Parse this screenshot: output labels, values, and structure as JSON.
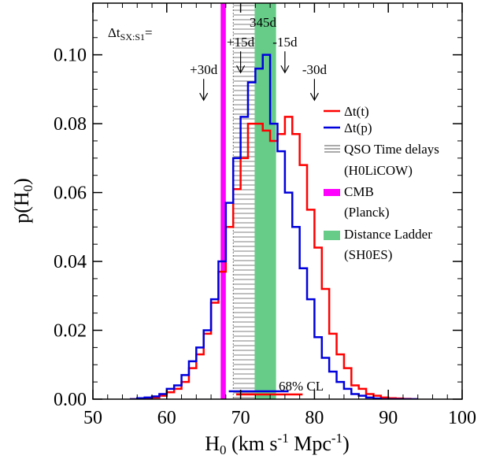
{
  "chart_data": {
    "type": "histogram",
    "xlabel": "H",
    "xlabel_sub": "0",
    "xlabel_units_prefix": " (km s",
    "xlabel_exp1": "-1",
    "xlabel_units_mid": " Mpc",
    "xlabel_exp2": "-1",
    "xlabel_close": ")",
    "ylabel": "p(H",
    "ylabel_sub": "0",
    "ylabel_close": ")",
    "xlim": [
      50,
      100
    ],
    "ylim": [
      0,
      0.115
    ],
    "xticks": [
      50,
      60,
      70,
      80,
      90,
      100
    ],
    "xtick_labels": [
      "50",
      "60",
      "70",
      "80",
      "90",
      "100"
    ],
    "yticks": [
      0.0,
      0.02,
      0.04,
      0.06,
      0.08,
      0.1
    ],
    "ytick_labels": [
      "0.00",
      "0.02",
      "0.04",
      "0.06",
      "0.08",
      "0.10"
    ],
    "bin_width": 1,
    "bin_starts": [
      55,
      56,
      57,
      58,
      59,
      60,
      61,
      62,
      63,
      64,
      65,
      66,
      67,
      68,
      69,
      70,
      71,
      72,
      73,
      74,
      75,
      76,
      77,
      78,
      79,
      80,
      81,
      82,
      83,
      84,
      85,
      86,
      87,
      88,
      89,
      90,
      91,
      92,
      93
    ],
    "series": [
      {
        "name": "Δt(t)",
        "color": "#ff0000",
        "values": [
          0.0,
          0.0002,
          0.0003,
          0.0005,
          0.001,
          0.002,
          0.003,
          0.005,
          0.009,
          0.013,
          0.019,
          0.028,
          0.037,
          0.05,
          0.061,
          0.07,
          0.08,
          0.08,
          0.078,
          0.075,
          0.077,
          0.082,
          0.077,
          0.068,
          0.055,
          0.044,
          0.032,
          0.019,
          0.013,
          0.009,
          0.004,
          0.003,
          0.0015,
          0.001,
          0.0005,
          0.0003,
          0.0002,
          0.0001,
          0.0
        ]
      },
      {
        "name": "Δt(p)",
        "color": "#0000dd",
        "values": [
          0.0,
          0.0003,
          0.0005,
          0.0008,
          0.0015,
          0.003,
          0.004,
          0.007,
          0.011,
          0.015,
          0.02,
          0.029,
          0.04,
          0.057,
          0.07,
          0.082,
          0.092,
          0.096,
          0.1,
          0.08,
          0.072,
          0.06,
          0.05,
          0.038,
          0.029,
          0.018,
          0.012,
          0.008,
          0.005,
          0.003,
          0.0015,
          0.001,
          0.0005,
          0.0002,
          0.0,
          0.0,
          0.0,
          0.0,
          0.0
        ]
      }
    ],
    "bands": [
      {
        "name": "QSO Time delays",
        "name2": "(H0LiCOW)",
        "range": [
          69.0,
          74.5
        ],
        "style": "hatched",
        "color": "#555555"
      },
      {
        "name": "CMB",
        "name2": "(Planck)",
        "range": [
          67.3,
          68.0
        ],
        "style": "solid",
        "color": "#ff00ff"
      },
      {
        "name": "Distance Ladder",
        "name2": "(SH0ES)",
        "range": [
          71.9,
          74.8
        ],
        "style": "solid",
        "color": "#66cc88"
      }
    ],
    "confidence_interval_label": "68% CL",
    "confidence_intervals": [
      {
        "color": "#0000dd",
        "range": [
          68.4,
          76.5
        ]
      },
      {
        "color": "#ff0000",
        "range": [
          69.4,
          78.4
        ]
      }
    ],
    "delay_label_prefix": "Δt",
    "delay_label_sub": "SX:S1",
    "delay_label_suffix": "=",
    "top_marker_label": "345d",
    "top_marker_x": 73.0,
    "delay_markers": [
      {
        "label": "+30d",
        "x": 65.0,
        "y": 0.093
      },
      {
        "label": "+15d",
        "x": 70.0,
        "y": 0.101
      },
      {
        "label": "-15d",
        "x": 76.0,
        "y": 0.101
      },
      {
        "label": "-30d",
        "x": 80.0,
        "y": 0.093
      }
    ],
    "legend_position": "right"
  }
}
